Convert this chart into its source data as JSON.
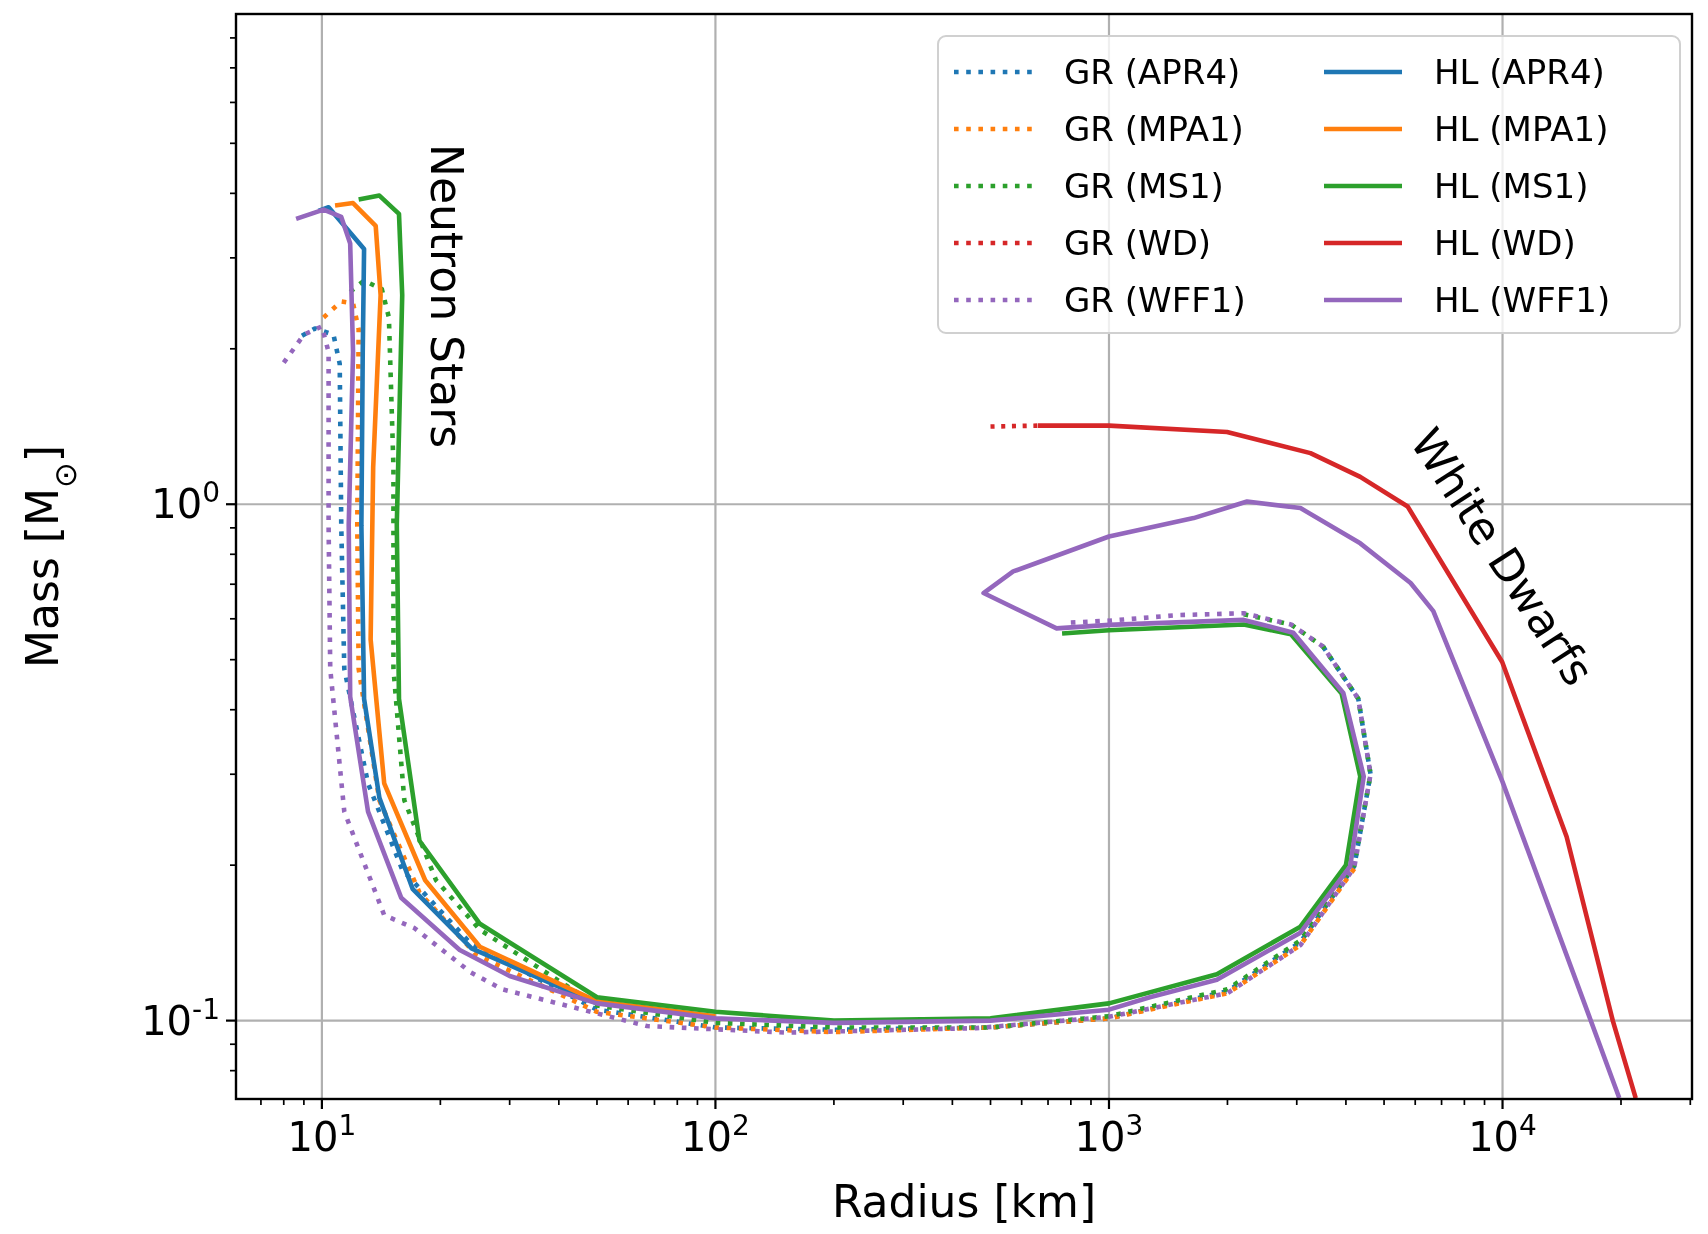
{
  "chart_data": {
    "type": "line",
    "xlabel": "Radius [km]",
    "ylabel": "Mass [M$_{⊙}$]",
    "log": "xy",
    "grid": true,
    "legend": "top right",
    "xlim": [
      6.05,
      30300
    ],
    "ylim": [
      0.0705,
      8.9
    ],
    "xticks": [
      {
        "value": 7,
        "label": null
      },
      {
        "value": 8,
        "label": null
      },
      {
        "value": 9,
        "label": null
      },
      {
        "value": 10,
        "label": "10$^{1}$"
      },
      {
        "value": 20,
        "label": null
      },
      {
        "value": 30,
        "label": null
      },
      {
        "value": 40,
        "label": null
      },
      {
        "value": 50,
        "label": null
      },
      {
        "value": 60,
        "label": null
      },
      {
        "value": 70,
        "label": null
      },
      {
        "value": 80,
        "label": null
      },
      {
        "value": 90,
        "label": null
      },
      {
        "value": 100,
        "label": "10$^{2}$"
      },
      {
        "value": 200,
        "label": null
      },
      {
        "value": 300,
        "label": null
      },
      {
        "value": 400,
        "label": null
      },
      {
        "value": 500,
        "label": null
      },
      {
        "value": 600,
        "label": null
      },
      {
        "value": 700,
        "label": null
      },
      {
        "value": 800,
        "label": null
      },
      {
        "value": 900,
        "label": null
      },
      {
        "value": 1000,
        "label": "10$^{3}$"
      },
      {
        "value": 2000,
        "label": null
      },
      {
        "value": 3000,
        "label": null
      },
      {
        "value": 4000,
        "label": null
      },
      {
        "value": 5000,
        "label": null
      },
      {
        "value": 6000,
        "label": null
      },
      {
        "value": 7000,
        "label": null
      },
      {
        "value": 8000,
        "label": null
      },
      {
        "value": 9000,
        "label": null
      },
      {
        "value": 10000,
        "label": "10$^{4}$"
      },
      {
        "value": 20000,
        "label": null
      },
      {
        "value": 30000,
        "label": null
      }
    ],
    "yticks": [
      {
        "value": 0.08,
        "label": null
      },
      {
        "value": 0.09,
        "label": null
      },
      {
        "value": 0.1,
        "label": "10$^{-1}$"
      },
      {
        "value": 0.2,
        "label": null
      },
      {
        "value": 0.3,
        "label": null
      },
      {
        "value": 0.4,
        "label": null
      },
      {
        "value": 0.5,
        "label": null
      },
      {
        "value": 0.6,
        "label": null
      },
      {
        "value": 0.7,
        "label": null
      },
      {
        "value": 0.8,
        "label": null
      },
      {
        "value": 0.9,
        "label": null
      },
      {
        "value": 1,
        "label": "10$^{0}$"
      },
      {
        "value": 2,
        "label": null
      },
      {
        "value": 3,
        "label": null
      },
      {
        "value": 4,
        "label": null
      },
      {
        "value": 5,
        "label": null
      },
      {
        "value": 6,
        "label": null
      },
      {
        "value": 7,
        "label": null
      },
      {
        "value": 8,
        "label": null
      }
    ],
    "annotations": [
      "Neutron Stars",
      "White Dwarfs"
    ],
    "series": [
      {
        "name": "GR (APR4)",
        "color": "#1f77b4",
        "line_style": "dotted",
        "x": [
          8.9,
          9.6,
          10.7,
          11.1,
          11.2,
          11.4,
          13.1,
          16.0,
          23.9,
          50,
          100,
          200,
          500,
          1000,
          2000,
          3065,
          4200,
          4620,
          4300,
          3500
        ],
        "values": [
          2.12,
          2.19,
          2.13,
          1.87,
          0.91,
          0.48,
          0.288,
          0.196,
          0.141,
          0.105,
          0.097,
          0.096,
          0.097,
          0.101,
          0.114,
          0.142,
          0.199,
          0.3,
          0.42,
          0.53
        ]
      },
      {
        "name": "GR (MPA1)",
        "color": "#ff7f0e",
        "line_style": "dotted",
        "x": [
          10.1,
          11.2,
          12.0,
          12.4,
          12.3,
          12.4,
          14.0,
          17.7,
          24.7,
          50,
          100,
          200,
          500,
          1000,
          2000,
          3065,
          4200
        ],
        "values": [
          2.3,
          2.47,
          2.45,
          2.18,
          0.91,
          0.48,
          0.267,
          0.177,
          0.134,
          0.104,
          0.097,
          0.095,
          0.097,
          0.101,
          0.113,
          0.14,
          0.197
        ]
      },
      {
        "name": "GR (MS1)",
        "color": "#2ca02c",
        "line_style": "dotted",
        "x": [
          11.8,
          12.8,
          14.2,
          14.8,
          15.2,
          15.2,
          16.2,
          19.5,
          25.2,
          50,
          100,
          200,
          500,
          1000,
          2000,
          3065,
          4200,
          4620,
          4300,
          3500,
          2900,
          2200
        ],
        "values": [
          2.58,
          2.71,
          2.61,
          2.3,
          1.18,
          0.48,
          0.267,
          0.187,
          0.15,
          0.107,
          0.099,
          0.097,
          0.097,
          0.102,
          0.115,
          0.143,
          0.2,
          0.3,
          0.42,
          0.53,
          0.585,
          0.612
        ]
      },
      {
        "name": "GR (WD)",
        "color": "#d62728",
        "line_style": "dotted",
        "x": [
          500,
          660
        ],
        "values": [
          1.414,
          1.42
        ]
      },
      {
        "name": "GR (WFF1)",
        "color": "#9467bd",
        "line_style": "dotted",
        "x": [
          8.0,
          9.0,
          10.0,
          10.4,
          10.4,
          10.5,
          11.4,
          14.4,
          17.2,
          23.9,
          28.7,
          67,
          151,
          460,
          1000,
          2000,
          3065,
          4200,
          4620,
          4300,
          3500,
          2900,
          2200,
          1500,
          1000,
          800
        ],
        "values": [
          1.88,
          2.13,
          2.21,
          1.97,
          0.91,
          0.48,
          0.254,
          0.16,
          0.151,
          0.124,
          0.115,
          0.0976,
          0.0948,
          0.0967,
          0.1017,
          0.113,
          0.14,
          0.198,
          0.3,
          0.42,
          0.53,
          0.585,
          0.615,
          0.61,
          0.595,
          0.59
        ]
      },
      {
        "name": "HL (APR4)",
        "color": "#1f77b4",
        "line_style": "solid",
        "x": [
          9.8,
          10.4,
          12.8,
          12.7,
          12.6,
          12.8,
          14.0,
          17.0,
          24.0,
          50
        ],
        "values": [
          3.7,
          3.76,
          3.12,
          1.97,
          0.91,
          0.42,
          0.27,
          0.18,
          0.138,
          0.108
        ]
      },
      {
        "name": "HL (MPA1)",
        "color": "#ff7f0e",
        "line_style": "solid",
        "x": [
          10.8,
          12.0,
          13.7,
          14.1,
          13.5,
          13.3,
          14.4,
          18.3,
          25.2,
          50,
          100
        ],
        "values": [
          3.79,
          3.83,
          3.46,
          2.54,
          1.18,
          0.547,
          0.288,
          0.187,
          0.139,
          0.109,
          0.102
        ]
      },
      {
        "name": "HL (MS1)",
        "color": "#2ca02c",
        "line_style": "solid",
        "x": [
          12.4,
          14.0,
          15.7,
          16.0,
          15.5,
          15.7,
          17.7,
          25.2,
          50,
          100,
          200,
          500,
          1000,
          1880,
          3065,
          4000,
          4350,
          3900,
          2900,
          2200,
          1000,
          760
        ],
        "values": [
          3.89,
          3.96,
          3.65,
          2.54,
          0.913,
          0.42,
          0.223,
          0.154,
          0.111,
          0.104,
          0.1,
          0.101,
          0.108,
          0.123,
          0.152,
          0.2,
          0.297,
          0.43,
          0.56,
          0.585,
          0.57,
          0.562
        ]
      },
      {
        "name": "HL (WD)",
        "color": "#d62728",
        "line_style": "solid",
        "x": [
          660,
          1000,
          1995,
          3250,
          4350,
          5740,
          9980,
          14550,
          19060,
          21800
        ],
        "values": [
          1.42,
          1.42,
          1.38,
          1.256,
          1.13,
          0.99,
          0.495,
          0.227,
          0.1,
          0.0708
        ]
      },
      {
        "name": "HL (WFF1)",
        "color": "#9467bd",
        "line_style": "solid",
        "x": [
          8.6,
          10.1,
          11.2,
          11.8,
          12.0,
          11.7,
          11.8,
          13.1,
          15.9,
          22.4,
          30,
          50,
          100,
          200,
          500,
          1000,
          1270,
          1880,
          3065,
          4100,
          4440,
          3940,
          2940,
          2200,
          1000,
          736,
          480,
          571,
          1000,
          1641,
          2243,
          3065,
          4350,
          5840,
          6670,
          10000,
          16600,
          19800
        ],
        "values": [
          3.57,
          3.72,
          3.6,
          3.2,
          1.97,
          0.913,
          0.424,
          0.254,
          0.173,
          0.137,
          0.122,
          0.108,
          0.101,
          0.099,
          0.1,
          0.105,
          0.111,
          0.12,
          0.148,
          0.199,
          0.297,
          0.431,
          0.564,
          0.597,
          0.584,
          0.575,
          0.673,
          0.741,
          0.866,
          0.94,
          1.012,
          0.983,
          0.84,
          0.704,
          0.621,
          0.29,
          0.102,
          0.0708
        ]
      }
    ]
  }
}
